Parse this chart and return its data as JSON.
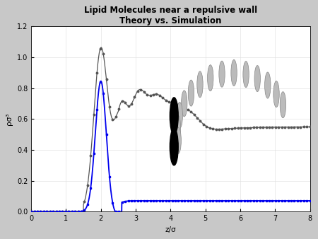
{
  "title": "Lipid Molecules near a repulsive wall\nTheory vs. Simulation",
  "xlabel": "z/σ",
  "ylabel": "ρσ³",
  "xlim": [
    0,
    8
  ],
  "ylim": [
    0,
    1.2
  ],
  "xticks": [
    0,
    1,
    2,
    3,
    4,
    5,
    6,
    7,
    8
  ],
  "yticks": [
    0,
    0.2,
    0.4,
    0.6,
    0.8,
    1.0,
    1.2
  ],
  "bg_color": "#c8c8c8",
  "plot_bg_color": "#ffffff",
  "title_fontsize": 8.5,
  "axis_fontsize": 7.5,
  "tick_fontsize": 7,
  "line_blue_color": "#0000ee",
  "line_gray_color": "#555555",
  "figsize": [
    4.5,
    3.38
  ],
  "dpi": 100
}
